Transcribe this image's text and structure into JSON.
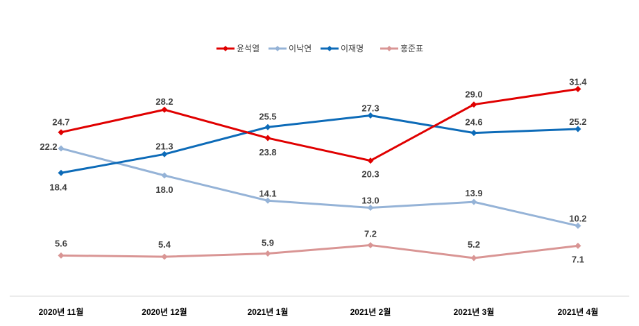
{
  "chart_data": {
    "type": "line",
    "categories": [
      "2020년 11월",
      "2020년 12월",
      "2021년 1월",
      "2021년 2월",
      "2021년 3월",
      "2021년 4월"
    ],
    "series": [
      {
        "name": "윤석열",
        "color": "#e00000",
        "values": [
          24.7,
          28.2,
          23.8,
          20.3,
          29.0,
          31.4
        ]
      },
      {
        "name": "이낙연",
        "color": "#95b3d7",
        "values": [
          22.2,
          18.0,
          14.1,
          13.0,
          13.9,
          10.2
        ]
      },
      {
        "name": "이재명",
        "color": "#0d6bb8",
        "values": [
          18.4,
          21.3,
          25.5,
          27.3,
          24.6,
          25.2
        ]
      },
      {
        "name": "홍준표",
        "color": "#d99594",
        "values": [
          5.6,
          5.4,
          5.9,
          7.2,
          5.2,
          7.1
        ]
      }
    ],
    "title": "",
    "xlabel": "",
    "ylabel": "",
    "legend": "top-center",
    "grid": false,
    "data_labels": true
  }
}
